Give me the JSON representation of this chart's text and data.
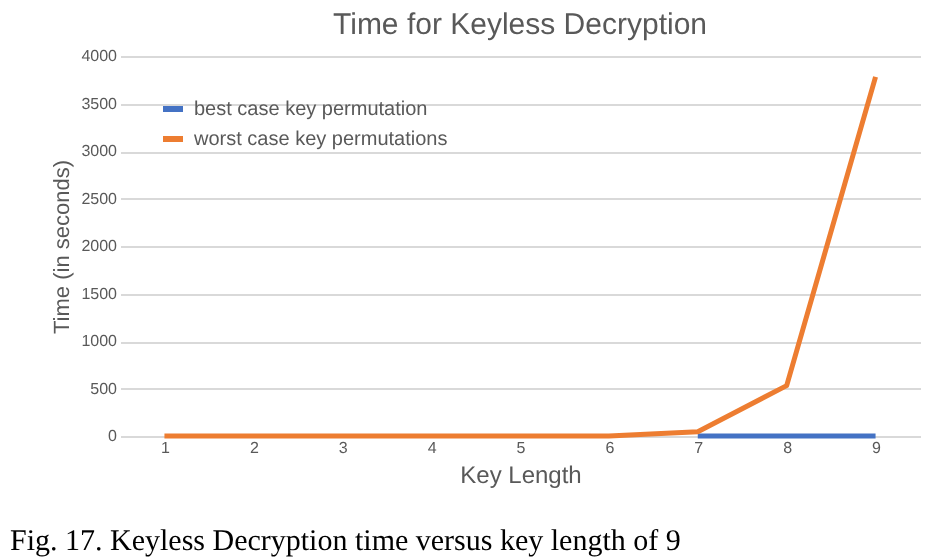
{
  "chart_data": {
    "type": "line",
    "title": "Time for Keyless Decryption",
    "xlabel": "Key Length",
    "ylabel": "Time (in seconds)",
    "categories": [
      "1",
      "2",
      "3",
      "4",
      "5",
      "6",
      "7",
      "8",
      "9"
    ],
    "series": [
      {
        "name": "best case key permutation",
        "color": "#4472c4",
        "values": [
          null,
          null,
          null,
          null,
          null,
          null,
          0,
          0,
          0
        ]
      },
      {
        "name": "worst case key permutations",
        "color": "#ed7d31",
        "values": [
          0,
          0,
          0,
          0,
          0,
          0,
          45,
          530,
          3780
        ]
      }
    ],
    "ylim": [
      0,
      4000
    ],
    "yticks": [
      0,
      500,
      1000,
      1500,
      2000,
      2500,
      3000,
      3500,
      4000
    ],
    "grid": "y",
    "legend": "top left",
    "marker": "none",
    "line_style": "solid",
    "annotations": [
      "Fig. 17. Keyless Decryption time versus key length of 9"
    ]
  }
}
